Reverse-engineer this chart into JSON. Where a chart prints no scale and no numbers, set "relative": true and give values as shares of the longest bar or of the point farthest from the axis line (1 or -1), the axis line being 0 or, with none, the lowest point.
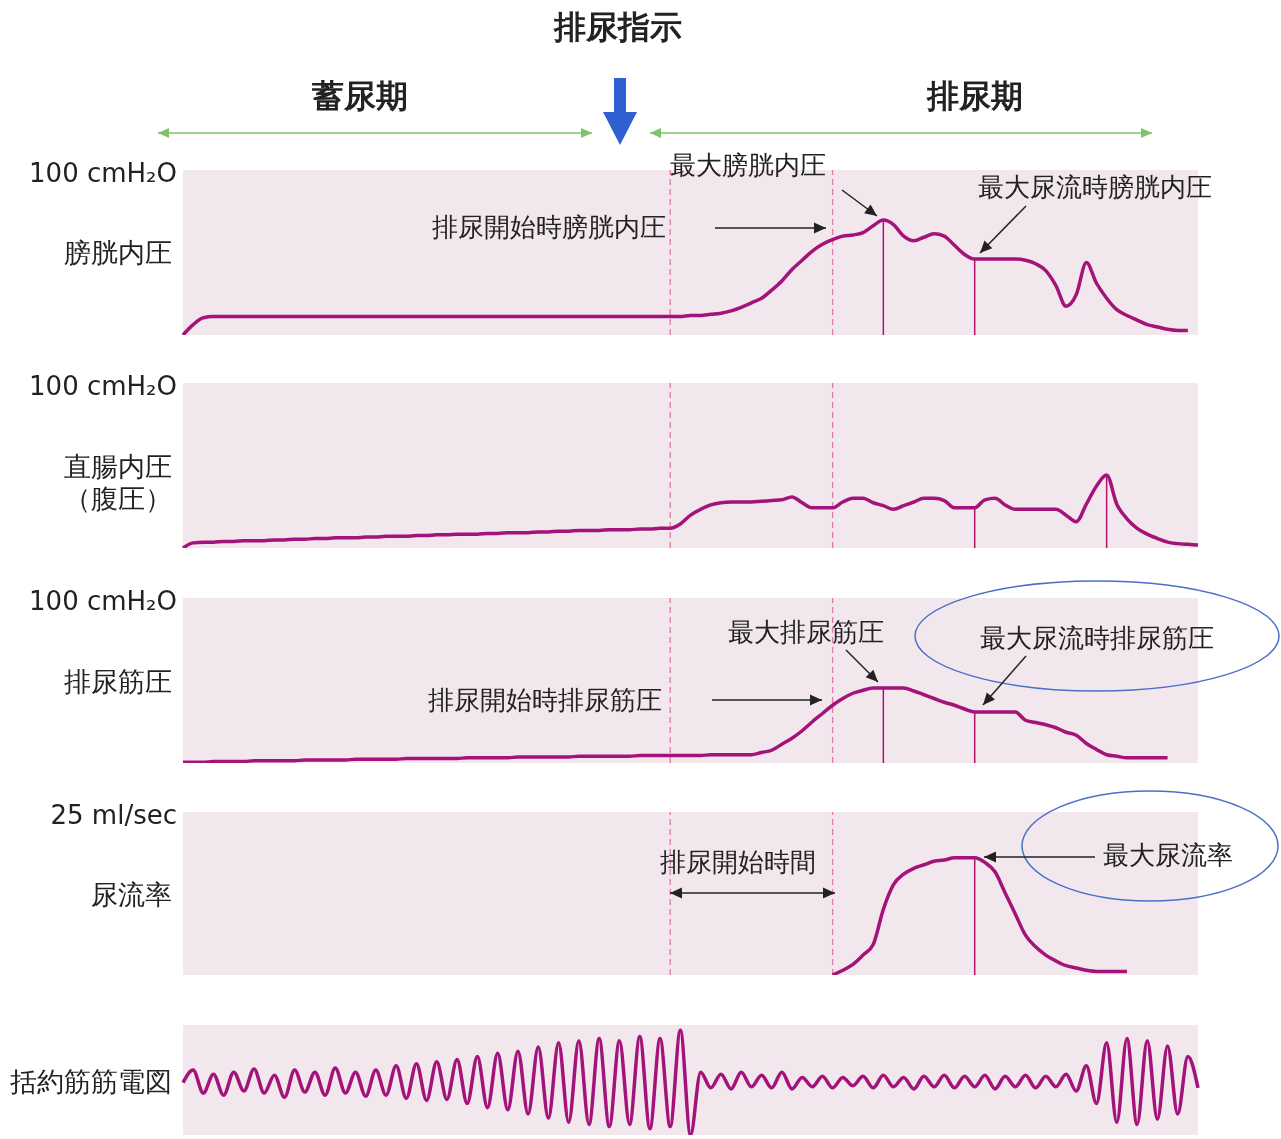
{
  "chart_data": [
    {
      "type": "line",
      "title": "排尿指示",
      "ylabel": "膀胱内圧",
      "relative": true,
      "categories": [
        null,
        null,
        null,
        null,
        null,
        null,
        null,
        null,
        null,
        null,
        null,
        null,
        null,
        null,
        null,
        null,
        null,
        null,
        null,
        null,
        null,
        null,
        null,
        null,
        null,
        null,
        null,
        null,
        null,
        null,
        null,
        null,
        null,
        null,
        null,
        null,
        null,
        null,
        null,
        null,
        null,
        null,
        null,
        null,
        null,
        null,
        null,
        null,
        null,
        null,
        null,
        null,
        null,
        null,
        null,
        null,
        null,
        null,
        null,
        null,
        null,
        null,
        null,
        null,
        null,
        null,
        null,
        null,
        null,
        null,
        null,
        null,
        null,
        null,
        null,
        null,
        null,
        null,
        null,
        null,
        null,
        null,
        null,
        null,
        null,
        null,
        null,
        null,
        null,
        null,
        null,
        null,
        null,
        null,
        null,
        null,
        null,
        null,
        null,
        null,
        null
      ],
      "series": [
        {
          "color": "#a3137a",
          "values": [
            0,
            0.09,
            0.15,
            0.16,
            0.16,
            0.16,
            0.16,
            0.16,
            0.16,
            0.16,
            0.16,
            0.16,
            0.16,
            0.16,
            0.16,
            0.16,
            0.16,
            0.16,
            0.16,
            0.16,
            0.16,
            0.16,
            0.16,
            0.16,
            0.16,
            0.16,
            0.16,
            0.16,
            0.16,
            0.16,
            0.16,
            0.16,
            0.16,
            0.16,
            0.16,
            0.16,
            0.16,
            0.16,
            0.16,
            0.16,
            0.16,
            0.16,
            0.16,
            0.16,
            0.16,
            0.16,
            0.16,
            0.16,
            0.16,
            0.16,
            0.17,
            0.17,
            0.18,
            0.19,
            0.21,
            0.24,
            0.28,
            0.32,
            0.39,
            0.47,
            0.57,
            0.65,
            0.73,
            0.79,
            0.83,
            0.86,
            0.87,
            0.89,
            0.95,
            1,
            0.96,
            0.86,
            0.82,
            0.85,
            0.88,
            0.86,
            0.78,
            0.7,
            0.66,
            0.66,
            0.66,
            0.66,
            0.66,
            0.65,
            0.62,
            0.56,
            0.43,
            0.25,
            0.35,
            0.63,
            0.45,
            0.32,
            0.22,
            0.17,
            0.13,
            0.09,
            0.07,
            0.05,
            0.04,
            0.04,
            null
          ]
        }
      ],
      "annotations": [
        "100 cmH₂O",
        "最大膀胱内圧",
        "排尿開始時膀胱内圧",
        "最大尿流時膀胱内圧",
        "蓄尿期",
        "排尿期"
      ]
    },
    {
      "type": "line",
      "ylabel": "直腸内圧（腹圧）",
      "relative": true,
      "categories": [
        null,
        null,
        null,
        null,
        null,
        null,
        null,
        null,
        null,
        null,
        null,
        null,
        null,
        null,
        null,
        null,
        null,
        null,
        null,
        null,
        null,
        null,
        null,
        null,
        null,
        null,
        null,
        null,
        null,
        null,
        null,
        null,
        null,
        null,
        null,
        null,
        null,
        null,
        null,
        null,
        null,
        null,
        null,
        null,
        null,
        null,
        null,
        null,
        null,
        null,
        null,
        null,
        null,
        null,
        null,
        null,
        null,
        null,
        null,
        null,
        null,
        null,
        null,
        null,
        null,
        null,
        null,
        null,
        null,
        null,
        null,
        null,
        null,
        null,
        null,
        null,
        null,
        null,
        null,
        null,
        null,
        null,
        null,
        null,
        null,
        null,
        null,
        null,
        null,
        null,
        null,
        null,
        null,
        null,
        null,
        null,
        null,
        null,
        null,
        null,
        null
      ],
      "series": [
        {
          "color": "#a3137a",
          "values": [
            0,
            0.07,
            0.08,
            0.08,
            0.09,
            0.09,
            0.1,
            0.1,
            0.1,
            0.11,
            0.11,
            0.12,
            0.12,
            0.13,
            0.13,
            0.14,
            0.14,
            0.14,
            0.15,
            0.15,
            0.16,
            0.16,
            0.16,
            0.17,
            0.17,
            0.18,
            0.18,
            0.19,
            0.19,
            0.19,
            0.2,
            0.2,
            0.21,
            0.21,
            0.21,
            0.22,
            0.22,
            0.23,
            0.23,
            0.24,
            0.24,
            0.24,
            0.25,
            0.25,
            0.25,
            0.26,
            0.26,
            0.27,
            0.27,
            0.33,
            0.45,
            0.53,
            0.59,
            0.62,
            0.63,
            0.63,
            0.63,
            0.64,
            0.65,
            0.66,
            0.7,
            0.62,
            0.55,
            0.55,
            0.55,
            0.63,
            0.68,
            0.68,
            0.62,
            0.58,
            0.53,
            0.58,
            0.63,
            0.68,
            0.68,
            0.65,
            0.55,
            0.55,
            0.55,
            0.66,
            0.68,
            0.59,
            0.53,
            0.53,
            0.53,
            0.53,
            0.53,
            0.45,
            0.36,
            0.6,
            0.85,
            1,
            0.6,
            0.4,
            0.27,
            0.19,
            0.13,
            0.08,
            0.06,
            0.05,
            0.04
          ]
        }
      ],
      "annotations": [
        "100 cmH₂O"
      ]
    },
    {
      "type": "line",
      "ylabel": "排尿筋圧",
      "relative": true,
      "categories": [
        null,
        null,
        null,
        null,
        null,
        null,
        null,
        null,
        null,
        null,
        null,
        null,
        null,
        null,
        null,
        null,
        null,
        null,
        null,
        null,
        null,
        null,
        null,
        null,
        null,
        null,
        null,
        null,
        null,
        null,
        null,
        null,
        null,
        null,
        null,
        null,
        null,
        null,
        null,
        null,
        null,
        null,
        null,
        null,
        null,
        null,
        null,
        null,
        null,
        null,
        null,
        null,
        null,
        null,
        null,
        null,
        null,
        null,
        null,
        null,
        null,
        null,
        null,
        null,
        null,
        null,
        null,
        null,
        null,
        null,
        null,
        null,
        null,
        null,
        null,
        null,
        null,
        null,
        null,
        null,
        null,
        null,
        null,
        null,
        null,
        null,
        null,
        null,
        null,
        null,
        null,
        null,
        null,
        null,
        null,
        null,
        null,
        null,
        null,
        null,
        null
      ],
      "series": [
        {
          "color": "#a3137a",
          "values": [
            0.01,
            0.01,
            0.01,
            0.02,
            0.02,
            0.02,
            0.02,
            0.03,
            0.03,
            0.03,
            0.03,
            0.03,
            0.04,
            0.04,
            0.04,
            0.04,
            0.04,
            0.05,
            0.05,
            0.05,
            0.05,
            0.05,
            0.06,
            0.06,
            0.06,
            0.06,
            0.06,
            0.06,
            0.07,
            0.07,
            0.07,
            0.07,
            0.07,
            0.08,
            0.08,
            0.08,
            0.08,
            0.08,
            0.08,
            0.09,
            0.09,
            0.09,
            0.09,
            0.09,
            0.09,
            0.1,
            0.1,
            0.1,
            0.1,
            0.1,
            0.1,
            0.1,
            0.11,
            0.11,
            0.11,
            0.11,
            0.11,
            0.14,
            0.17,
            0.25,
            0.33,
            0.43,
            0.55,
            0.66,
            0.77,
            0.86,
            0.93,
            0.97,
            1,
            1,
            1,
            1,
            0.96,
            0.91,
            0.86,
            0.81,
            0.77,
            0.72,
            0.68,
            0.68,
            0.68,
            0.68,
            0.68,
            0.57,
            0.54,
            0.51,
            0.47,
            0.41,
            0.37,
            0.26,
            0.18,
            0.11,
            0.09,
            0.07,
            0.07,
            0.07,
            0.07,
            0.07,
            null,
            null,
            null
          ]
        }
      ],
      "annotations": [
        "100 cmH₂O",
        "最大排尿筋圧",
        "最大尿流時排尿筋圧",
        "排尿開始時排尿筋圧"
      ]
    },
    {
      "type": "line",
      "ylabel": "尿流率",
      "relative": true,
      "categories": [
        null,
        null,
        null,
        null,
        null,
        null,
        null,
        null,
        null,
        null,
        null,
        null,
        null,
        null,
        null,
        null,
        null,
        null,
        null,
        null,
        null,
        null,
        null,
        null,
        null,
        null,
        null,
        null,
        null,
        null,
        null,
        null,
        null,
        null,
        null,
        null,
        null,
        null,
        null,
        null,
        null,
        null,
        null,
        null,
        null,
        null,
        null,
        null,
        null,
        null,
        null,
        null,
        null,
        null,
        null,
        null,
        null,
        null,
        null,
        null,
        null,
        null,
        null,
        null,
        null,
        null,
        null,
        null,
        null,
        null,
        null,
        null,
        null,
        null,
        null,
        null,
        null,
        null,
        null,
        null,
        null,
        null,
        null,
        null,
        null,
        null,
        null,
        null,
        null,
        null,
        null,
        null,
        null,
        null,
        null,
        null,
        null,
        null,
        null,
        null,
        null
      ],
      "series": [
        {
          "color": "#a3137a",
          "values": [
            null,
            null,
            null,
            null,
            null,
            null,
            null,
            null,
            null,
            null,
            null,
            null,
            null,
            null,
            null,
            null,
            null,
            null,
            null,
            null,
            null,
            null,
            null,
            null,
            null,
            null,
            null,
            null,
            null,
            null,
            null,
            null,
            null,
            null,
            null,
            null,
            null,
            null,
            null,
            null,
            null,
            null,
            null,
            null,
            null,
            null,
            null,
            null,
            null,
            null,
            null,
            null,
            null,
            null,
            null,
            null,
            null,
            null,
            null,
            null,
            null,
            null,
            null,
            null,
            0,
            0.04,
            0.09,
            0.17,
            0.26,
            0.56,
            0.77,
            0.86,
            0.91,
            0.94,
            0.97,
            0.98,
            1,
            1,
            1,
            0.96,
            0.88,
            0.7,
            0.52,
            0.34,
            0.24,
            0.17,
            0.12,
            0.08,
            0.06,
            0.04,
            0.03,
            0.03,
            0.03,
            0.03,
            null,
            null,
            null,
            null,
            null,
            null,
            null
          ]
        }
      ],
      "annotations": [
        "25 ml/sec",
        "排尿開始時間",
        "最大尿流率"
      ]
    },
    {
      "type": "line",
      "ylabel": "括約筋筋電図",
      "relative": true,
      "categories": [
        null,
        null,
        null,
        null,
        null,
        null,
        null,
        null,
        null,
        null,
        null,
        null,
        null,
        null,
        null,
        null,
        null,
        null,
        null,
        null,
        null,
        null,
        null,
        null,
        null,
        null,
        null,
        null,
        null,
        null,
        null,
        null,
        null,
        null,
        null,
        null,
        null,
        null,
        null,
        null,
        null,
        null,
        null,
        null,
        null,
        null,
        null,
        null,
        null,
        null,
        null,
        null,
        null,
        null,
        null,
        null,
        null,
        null,
        null,
        null,
        null,
        null,
        null,
        null,
        null,
        null,
        null,
        null,
        null,
        null,
        null,
        null,
        null,
        null,
        null,
        null,
        null,
        null,
        null,
        null,
        null,
        null,
        null,
        null,
        null,
        null,
        null,
        null,
        null,
        null,
        null,
        null,
        null,
        null,
        null,
        null,
        null,
        null,
        null,
        null,
        null
      ],
      "series": [
        {
          "color": "#a3137a",
          "values": [
            0.5,
            0.62,
            0.4,
            0.58,
            0.38,
            0.6,
            0.42,
            0.63,
            0.4,
            0.57,
            0.36,
            0.62,
            0.41,
            0.6,
            0.38,
            0.64,
            0.4,
            0.6,
            0.37,
            0.62,
            0.38,
            0.66,
            0.35,
            0.68,
            0.33,
            0.7,
            0.34,
            0.72,
            0.3,
            0.75,
            0.26,
            0.78,
            0.24,
            0.8,
            0.2,
            0.84,
            0.16,
            0.88,
            0.12,
            0.9,
            0.1,
            0.92,
            0.08,
            0.9,
            0.1,
            0.94,
            0.06,
            0.92,
            0.08,
            1,
            0,
            0.6,
            0.45,
            0.58,
            0.44,
            0.6,
            0.46,
            0.57,
            0.45,
            0.6,
            0.44,
            0.55,
            0.46,
            0.56,
            0.45,
            0.55,
            0.47,
            0.56,
            0.45,
            0.57,
            0.46,
            0.55,
            0.44,
            0.56,
            0.46,
            0.57,
            0.45,
            0.56,
            0.46,
            0.57,
            0.44,
            0.56,
            0.46,
            0.57,
            0.45,
            0.56,
            0.46,
            0.58,
            0.42,
            0.66,
            0.3,
            0.88,
            0.12,
            0.92,
            0.1,
            0.9,
            0.15,
            0.85,
            0.2,
            0.75,
            0.45
          ]
        }
      ]
    }
  ]
}
